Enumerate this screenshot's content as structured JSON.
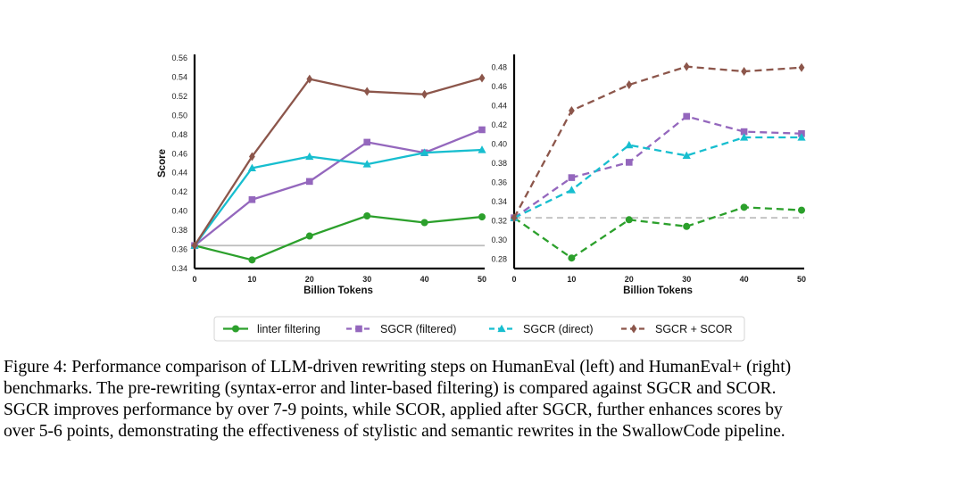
{
  "chart_data": [
    {
      "type": "line",
      "panel": "left",
      "xlabel": "Billion Tokens",
      "ylabel": "Score",
      "x": [
        0,
        10,
        20,
        30,
        40,
        50
      ],
      "xticks": [
        "0",
        "10",
        "20",
        "30",
        "40",
        "50"
      ],
      "xlim": [
        0,
        50
      ],
      "ylim": [
        0.34,
        0.56
      ],
      "yticks": [
        "0.34",
        "0.36",
        "0.38",
        "0.40",
        "0.42",
        "0.44",
        "0.46",
        "0.48",
        "0.50",
        "0.52",
        "0.54",
        "0.56"
      ],
      "baseline": 0.364,
      "baseline_style": "solid",
      "series": [
        {
          "name": "linter filtering",
          "values": [
            0.364,
            0.349,
            0.374,
            0.395,
            0.388,
            0.394
          ]
        },
        {
          "name": "SGCR (filtered)",
          "values": [
            0.364,
            0.412,
            0.431,
            0.472,
            0.461,
            0.485
          ]
        },
        {
          "name": "SGCR (direct)",
          "values": [
            0.364,
            0.445,
            0.457,
            0.449,
            0.461,
            0.464
          ]
        },
        {
          "name": "SGCR + SCOR",
          "values": [
            0.364,
            0.457,
            0.538,
            0.525,
            0.522,
            0.539
          ]
        }
      ]
    },
    {
      "type": "line",
      "panel": "right",
      "xlabel": "Billion Tokens",
      "ylabel": "",
      "x": [
        0,
        10,
        20,
        30,
        40,
        50
      ],
      "xticks": [
        "0",
        "10",
        "20",
        "30",
        "40",
        "50"
      ],
      "xlim": [
        0,
        50
      ],
      "ylim": [
        0.27,
        0.49
      ],
      "yticks": [
        "0.28",
        "0.30",
        "0.32",
        "0.34",
        "0.36",
        "0.38",
        "0.40",
        "0.42",
        "0.44",
        "0.46",
        "0.48"
      ],
      "baseline": 0.323,
      "baseline_style": "dashed",
      "series": [
        {
          "name": "linter filtering",
          "values": [
            0.323,
            0.281,
            0.321,
            0.314,
            0.334,
            0.331
          ]
        },
        {
          "name": "SGCR (filtered)",
          "values": [
            0.323,
            0.365,
            0.381,
            0.429,
            0.413,
            0.411
          ]
        },
        {
          "name": "SGCR (direct)",
          "values": [
            0.323,
            0.352,
            0.399,
            0.388,
            0.407,
            0.407
          ]
        },
        {
          "name": "SGCR + SCOR",
          "values": [
            0.323,
            0.435,
            0.462,
            0.481,
            0.476,
            0.48
          ]
        }
      ]
    }
  ],
  "series_style": [
    {
      "name": "linter filtering",
      "color": "#2ca02c",
      "marker": "circle"
    },
    {
      "name": "SGCR (filtered)",
      "color": "#9467bd",
      "marker": "square"
    },
    {
      "name": "SGCR (direct)",
      "color": "#17becf",
      "marker": "triangle"
    },
    {
      "name": "SGCR + SCOR",
      "color": "#8c564b",
      "marker": "diamond"
    }
  ],
  "legend": {
    "placement": "bottom-center",
    "entries": [
      "linter filtering",
      "SGCR (filtered)",
      "SGCR (direct)",
      "SGCR + SCOR"
    ]
  },
  "caption": {
    "lines": [
      "Figure 4: Performance comparison of LLM-driven rewriting steps on HumanEval (left) and HumanEval+ (right)",
      "benchmarks. The pre-rewriting (syntax-error and linter-based filtering) is compared against SGCR and SCOR.",
      "SGCR improves performance by over 7-9 points, while SCOR, applied after SGCR, further enhances scores by",
      "over 5-6 points, demonstrating the effectiveness of stylistic and semantic rewrites in the SwallowCode pipeline."
    ]
  }
}
